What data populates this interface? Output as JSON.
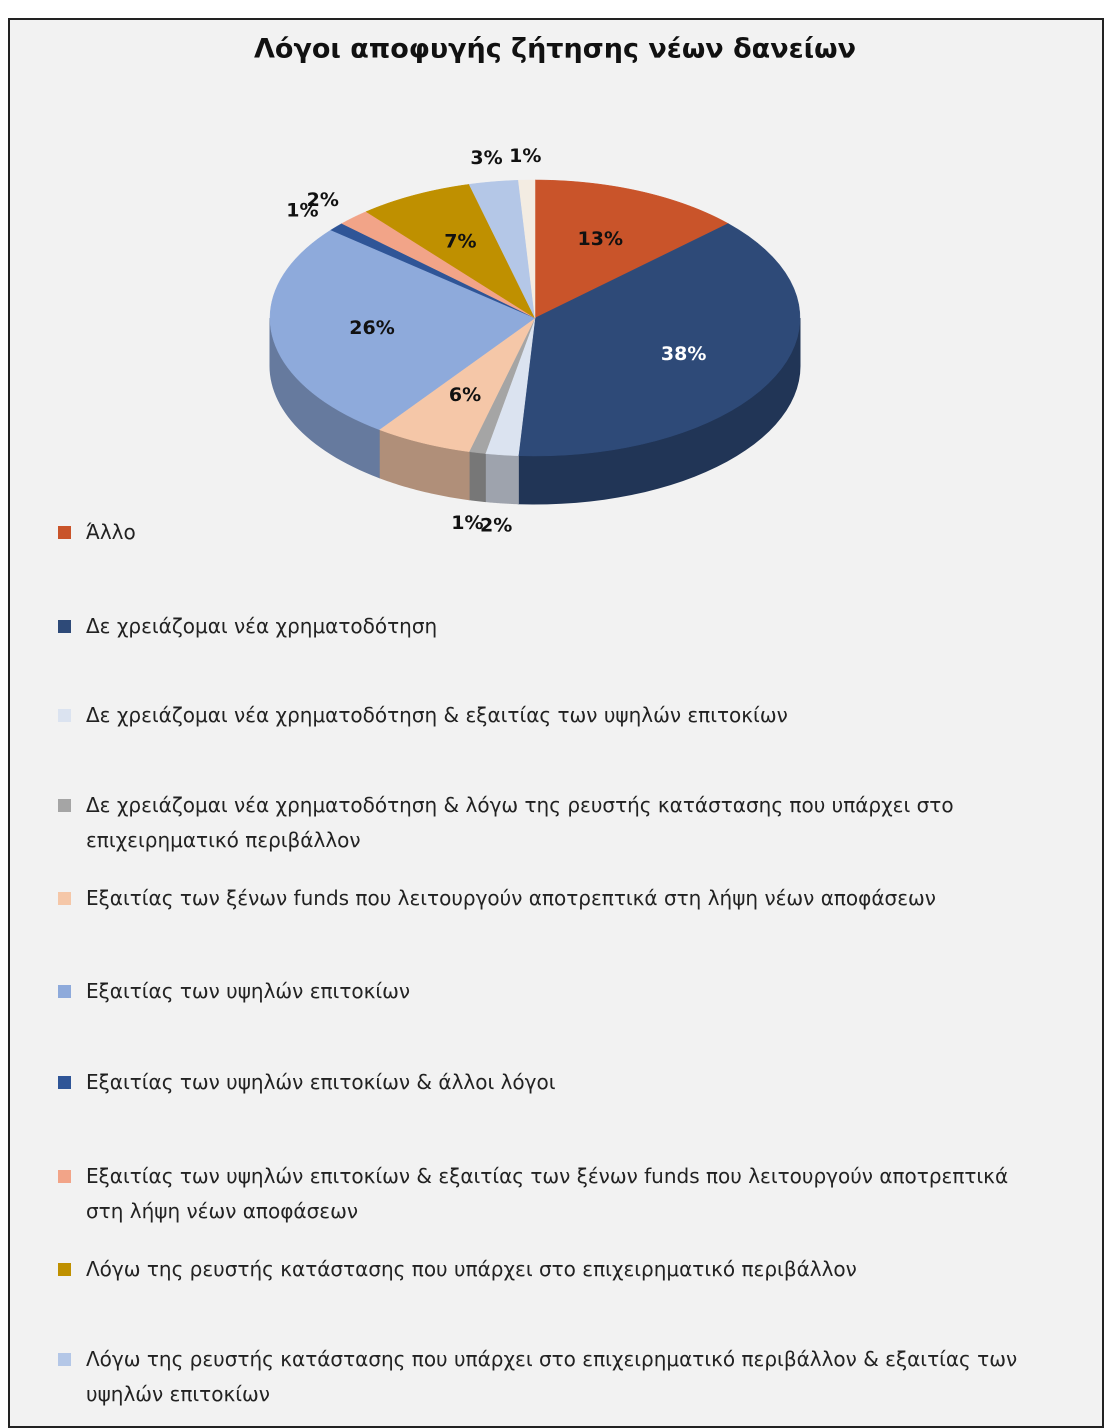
{
  "chart_data": {
    "type": "pie",
    "title": "Λόγοι αποφυγής ζήτησης νέων δανείων",
    "categories": [
      "Άλλο",
      "Δε   χρειάζομαι νέα χρηματοδότηση",
      "Δε χρειάζομαι νέα χρηματοδότηση & εξαιτίας των υψηλών επιτοκίων",
      "Δε χρειάζομαι νέα χρηματοδότηση & λόγω της ρευστής κατάστασης που υπάρχει στο επιχειρηματικό περιβάλλον",
      "Εξαιτίας των ξένων funds που λειτουργούν αποτρεπτικά στη λήψη νέων αποφάσεων",
      "Εξαιτίας των υψηλών επιτοκίων",
      "Εξαιτίας των υψηλών επιτοκίων & άλλοι λόγοι",
      "Εξαιτίας των υψηλών επιτοκίων & εξαιτίας των ξένων funds που λειτουργούν αποτρεπτικά στη λήψη νέων αποφάσεων",
      "Λόγω της ρευστής κατάστασης που υπάρχει στο επιχειρηματικό περιβάλλον",
      "Λόγω της ρευστής κατάστασης που υπάρχει στο επιχειρηματικό περιβάλλον & εξαιτίας των υψηλών επιτοκίων",
      null
    ],
    "values": [
      13,
      38,
      2,
      1,
      6,
      26,
      1,
      2,
      7,
      3,
      1
    ],
    "value_labels": [
      "13%",
      "38%",
      "2%",
      "1%",
      "6%",
      "26%",
      "1%",
      "2%",
      "7%",
      "3%",
      "1%"
    ],
    "colors": [
      "#c9542a",
      "#2e4a78",
      "#dbe3f0",
      "#a5a5a5",
      "#f5c7a8",
      "#8eaadb",
      "#2f5597",
      "#f2a488",
      "#bf9000",
      "#b4c7e7",
      "#f3ece2"
    ]
  }
}
